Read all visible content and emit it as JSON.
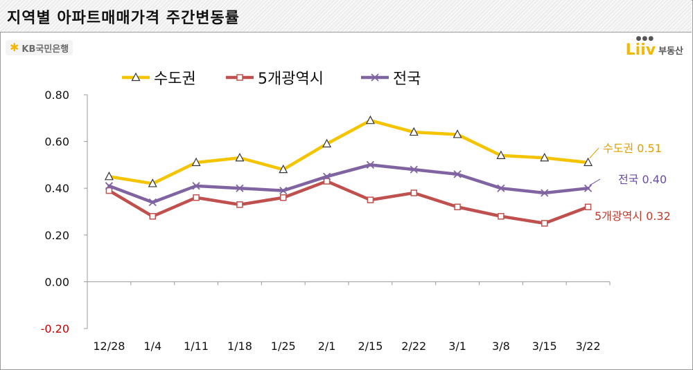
{
  "header": {
    "title": "지역별 아파트매매가격 주간변동률"
  },
  "logos": {
    "kb_text": "KB국민은행",
    "liiv_mark": "Liiv",
    "liiv_sub": "부동산"
  },
  "chart_data": {
    "type": "line",
    "categories": [
      "12/28",
      "1/4",
      "1/11",
      "1/18",
      "1/25",
      "2/1",
      "2/15",
      "2/22",
      "3/1",
      "3/8",
      "3/15",
      "3/22"
    ],
    "ylim": [
      -0.2,
      0.8
    ],
    "yticks": [
      "0.80",
      "0.60",
      "0.40",
      "0.20",
      "0.00",
      "-0.20"
    ],
    "grid": false,
    "legend_position": "top-left",
    "series": [
      {
        "name": "수도권",
        "color": "#f5c400",
        "marker": "triangle",
        "values": [
          0.45,
          0.42,
          0.51,
          0.53,
          0.48,
          0.59,
          0.69,
          0.64,
          0.63,
          0.54,
          0.53,
          0.51
        ],
        "end_label": "수도권 0.51",
        "end_label_color": "#e0a000"
      },
      {
        "name": "5개광역시",
        "color": "#c0504d",
        "marker": "square",
        "values": [
          0.39,
          0.28,
          0.36,
          0.33,
          0.36,
          0.43,
          0.35,
          0.38,
          0.32,
          0.28,
          0.25,
          0.32
        ],
        "end_label": "5개광역시 0.32",
        "end_label_color": "#c0392b"
      },
      {
        "name": "전국",
        "color": "#8064a2",
        "marker": "x",
        "values": [
          0.41,
          0.34,
          0.41,
          0.4,
          0.39,
          0.45,
          0.5,
          0.48,
          0.46,
          0.4,
          0.38,
          0.4
        ],
        "end_label": "전국 0.40",
        "end_label_color": "#6a4ca0"
      }
    ]
  }
}
